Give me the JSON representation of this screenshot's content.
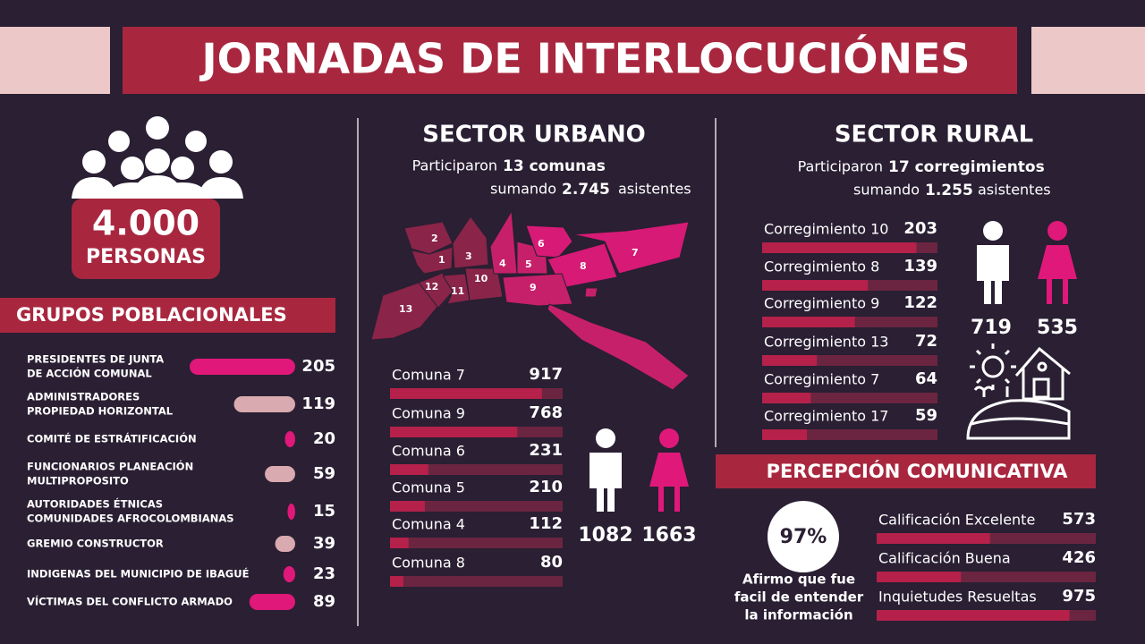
{
  "header": {
    "title": "JORNADAS DE INTERLOCUCIÓNES"
  },
  "total": {
    "value": "4.000",
    "label": "PERSONAS"
  },
  "groups": {
    "title": "GRUPOS POBLACIONALES",
    "items": [
      {
        "label": [
          "PRESIDENTES DE JUNTA",
          "DE ACCIÓN COMUNAL"
        ],
        "value": 205,
        "color": "#e0187a"
      },
      {
        "label": [
          "ADMINISTRADORES",
          "PROPIEDAD HORIZONTAL"
        ],
        "value": 119,
        "color": "#d9aab0"
      },
      {
        "label": [
          "COMITÉ DE ESTRÁTIFICACIÓN"
        ],
        "value": 20,
        "color": "#e0187a"
      },
      {
        "label": [
          "FUNCIONARIOS PLANEACIÓN",
          "MULTIPROPOSITO"
        ],
        "value": 59,
        "color": "#d9aab0"
      },
      {
        "label": [
          "AUTORIDADES ÉTNICAS",
          "COMUNIDADES AFROCOLOMBIANAS"
        ],
        "value": 15,
        "color": "#e0187a"
      },
      {
        "label": [
          "GREMIO CONSTRUCTOR"
        ],
        "value": 39,
        "color": "#d9aab0"
      },
      {
        "label": [
          "INDIGENAS DEL MUNICIPIO DE IBAGUÉ"
        ],
        "value": 23,
        "color": "#e0187a"
      },
      {
        "label": [
          "VÍCTIMAS DEL CONFLICTO ARMADO"
        ],
        "value": 89,
        "color": "#e0187a"
      }
    ]
  },
  "urban": {
    "title": "SECTOR URBANO",
    "intro": [
      "Participaron",
      "13 comunas"
    ],
    "sum": [
      "sumando",
      "2.745",
      "asistentes"
    ],
    "map_labels": [
      "1",
      "2",
      "3",
      "4",
      "5",
      "6",
      "7",
      "8",
      "9",
      "10",
      "11",
      "12",
      "13"
    ],
    "items": [
      {
        "label": "Comuna 7",
        "value": 917
      },
      {
        "label": "Comuna 9",
        "value": 768
      },
      {
        "label": "Comuna 6",
        "value": 231
      },
      {
        "label": "Comuna 5",
        "value": 210
      },
      {
        "label": "Comuna 4",
        "value": 112
      },
      {
        "label": "Comuna 8",
        "value": 80
      }
    ],
    "men": 1082,
    "women": 1663
  },
  "rural": {
    "title": "SECTOR RURAL",
    "intro": [
      "Participaron",
      "17 corregimientos"
    ],
    "sum": [
      "sumando",
      "1.255",
      "asistentes"
    ],
    "items": [
      {
        "label": "Corregimiento 10",
        "value": 203
      },
      {
        "label": "Corregimiento 8",
        "value": 139
      },
      {
        "label": "Corregimiento 9",
        "value": 122
      },
      {
        "label": "Corregimiento 13",
        "value": 72
      },
      {
        "label": "Corregimiento 7",
        "value": 64
      },
      {
        "label": "Corregimiento 17",
        "value": 59
      }
    ],
    "men": 719,
    "women": 535
  },
  "perception": {
    "title": "PERCEPCIÓN COMUNICATIVA",
    "percent": "97%",
    "note": [
      "Afirmo que fue",
      "facil de entender",
      "la información"
    ],
    "items": [
      {
        "label": "Calificación Excelente",
        "value": 573
      },
      {
        "label": "Calificación Buena",
        "value": 426
      },
      {
        "label": "Inquietudes Resueltas",
        "value": 975
      }
    ]
  }
}
